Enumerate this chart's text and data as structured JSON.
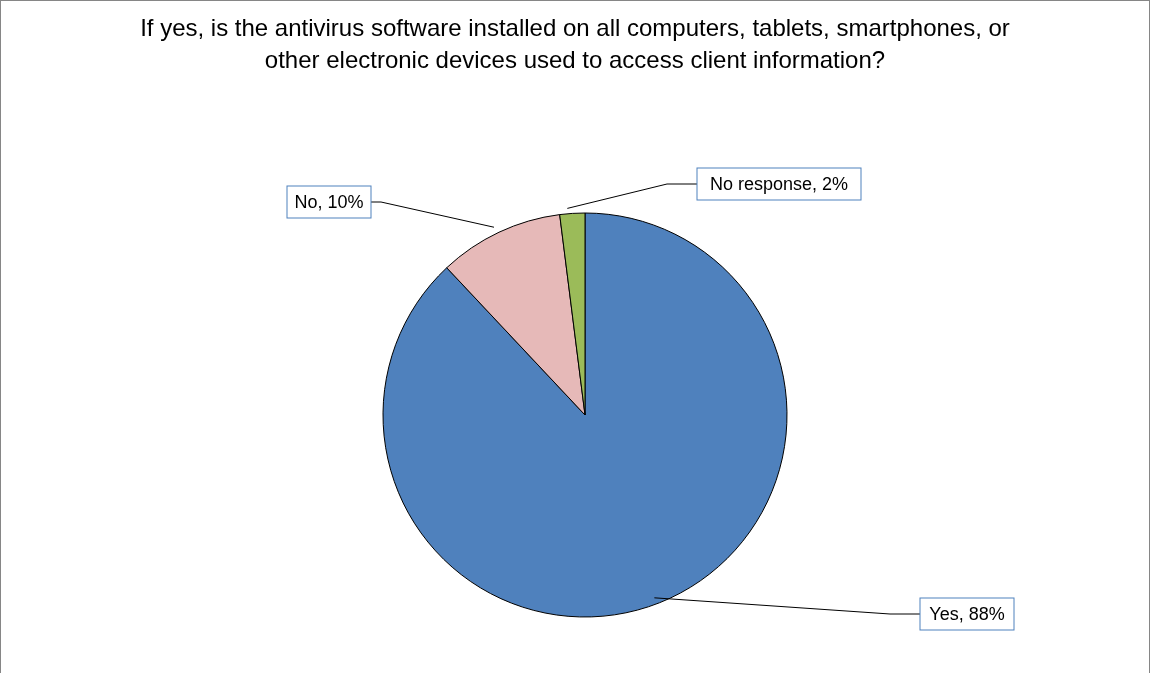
{
  "chart_data": {
    "type": "pie",
    "title": "If yes, is the antivirus software installed on all computers, tablets, smartphones, or other electronic devices used to access client information?",
    "categories": [
      "Yes",
      "No",
      "No response"
    ],
    "values": [
      88,
      10,
      2
    ],
    "value_labels": [
      "88%",
      "10%",
      "2%"
    ],
    "colors": [
      "#4f81bd",
      "#e6b9b8",
      "#9bbb59"
    ],
    "legend": false
  }
}
